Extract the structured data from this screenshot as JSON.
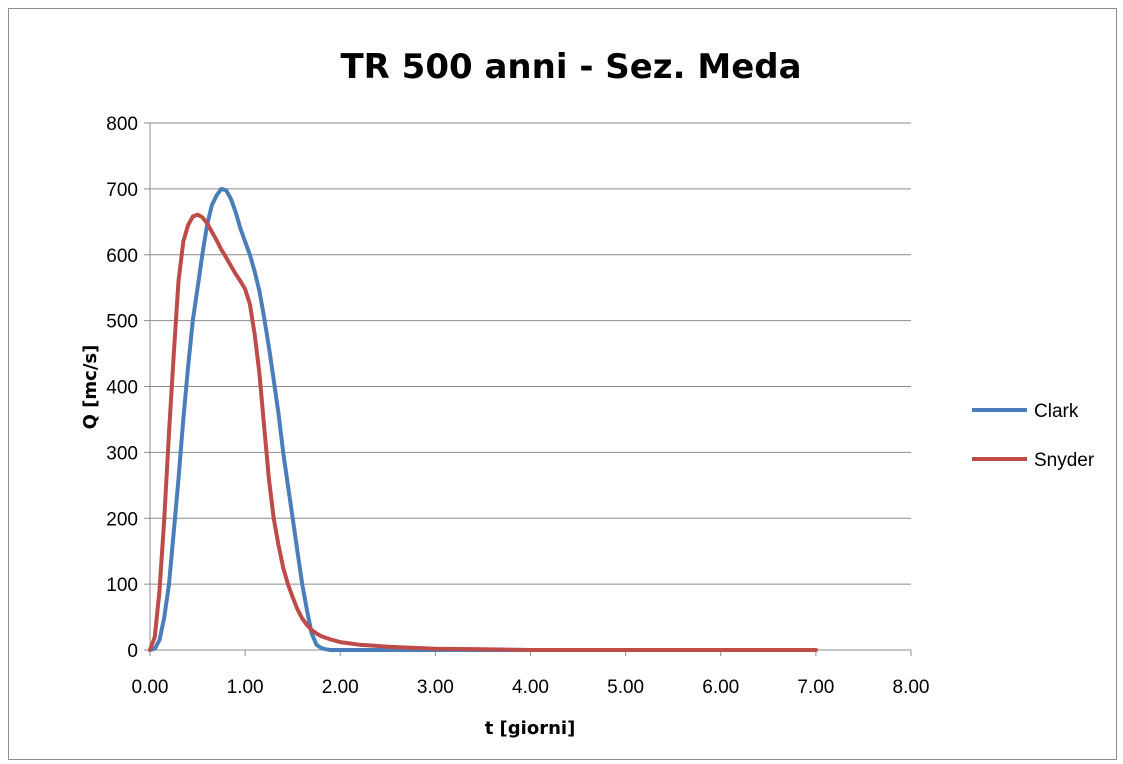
{
  "chart_data": {
    "type": "line",
    "title": "TR 500 anni - Sez. Meda",
    "xlabel": "t [giorni]",
    "ylabel": "Q [mc/s]",
    "xlim": [
      0,
      8
    ],
    "ylim": [
      0,
      800
    ],
    "xticks": [
      0,
      1,
      2,
      3,
      4,
      5,
      6,
      7,
      8
    ],
    "xtick_labels": [
      "0.00",
      "1.00",
      "2.00",
      "3.00",
      "4.00",
      "5.00",
      "6.00",
      "7.00",
      "8.00"
    ],
    "yticks": [
      0,
      100,
      200,
      300,
      400,
      500,
      600,
      700,
      800
    ],
    "ytick_labels": [
      "0",
      "100",
      "200",
      "300",
      "400",
      "500",
      "600",
      "700",
      "800"
    ],
    "grid": "horizontal",
    "legend_position": "right",
    "series": [
      {
        "name": "Clark",
        "color": "#4a7ebb",
        "x": [
          0.0,
          0.05,
          0.1,
          0.15,
          0.2,
          0.25,
          0.3,
          0.35,
          0.4,
          0.45,
          0.5,
          0.55,
          0.6,
          0.65,
          0.7,
          0.75,
          0.8,
          0.85,
          0.9,
          0.95,
          1.0,
          1.05,
          1.1,
          1.15,
          1.2,
          1.25,
          1.3,
          1.35,
          1.4,
          1.45,
          1.5,
          1.55,
          1.6,
          1.65,
          1.7,
          1.75,
          1.8,
          1.85,
          1.9,
          2.0,
          2.2,
          2.5,
          3.0,
          4.0,
          5.0
        ],
        "y": [
          0,
          2,
          15,
          50,
          100,
          180,
          260,
          350,
          430,
          500,
          550,
          600,
          645,
          675,
          690,
          700,
          698,
          685,
          665,
          640,
          620,
          600,
          575,
          545,
          505,
          460,
          410,
          360,
          300,
          250,
          200,
          150,
          100,
          60,
          25,
          8,
          3,
          1,
          0,
          0,
          0,
          0,
          0,
          0,
          0
        ]
      },
      {
        "name": "Snyder",
        "color": "#be4b48",
        "x": [
          0.0,
          0.05,
          0.1,
          0.15,
          0.2,
          0.25,
          0.3,
          0.35,
          0.4,
          0.45,
          0.5,
          0.55,
          0.6,
          0.65,
          0.7,
          0.75,
          0.8,
          0.85,
          0.9,
          0.95,
          1.0,
          1.05,
          1.1,
          1.15,
          1.2,
          1.25,
          1.3,
          1.35,
          1.4,
          1.45,
          1.5,
          1.55,
          1.6,
          1.65,
          1.7,
          1.75,
          1.8,
          1.9,
          2.0,
          2.2,
          2.5,
          3.0,
          3.5,
          4.0,
          5.0,
          6.0,
          7.0
        ],
        "y": [
          0,
          20,
          90,
          200,
          330,
          450,
          560,
          620,
          645,
          658,
          661,
          657,
          648,
          635,
          622,
          608,
          596,
          583,
          571,
          560,
          548,
          525,
          480,
          420,
          340,
          260,
          200,
          160,
          125,
          100,
          80,
          62,
          48,
          38,
          30,
          25,
          21,
          16,
          12,
          8,
          5,
          2,
          1,
          0,
          0,
          0,
          0
        ]
      }
    ]
  }
}
